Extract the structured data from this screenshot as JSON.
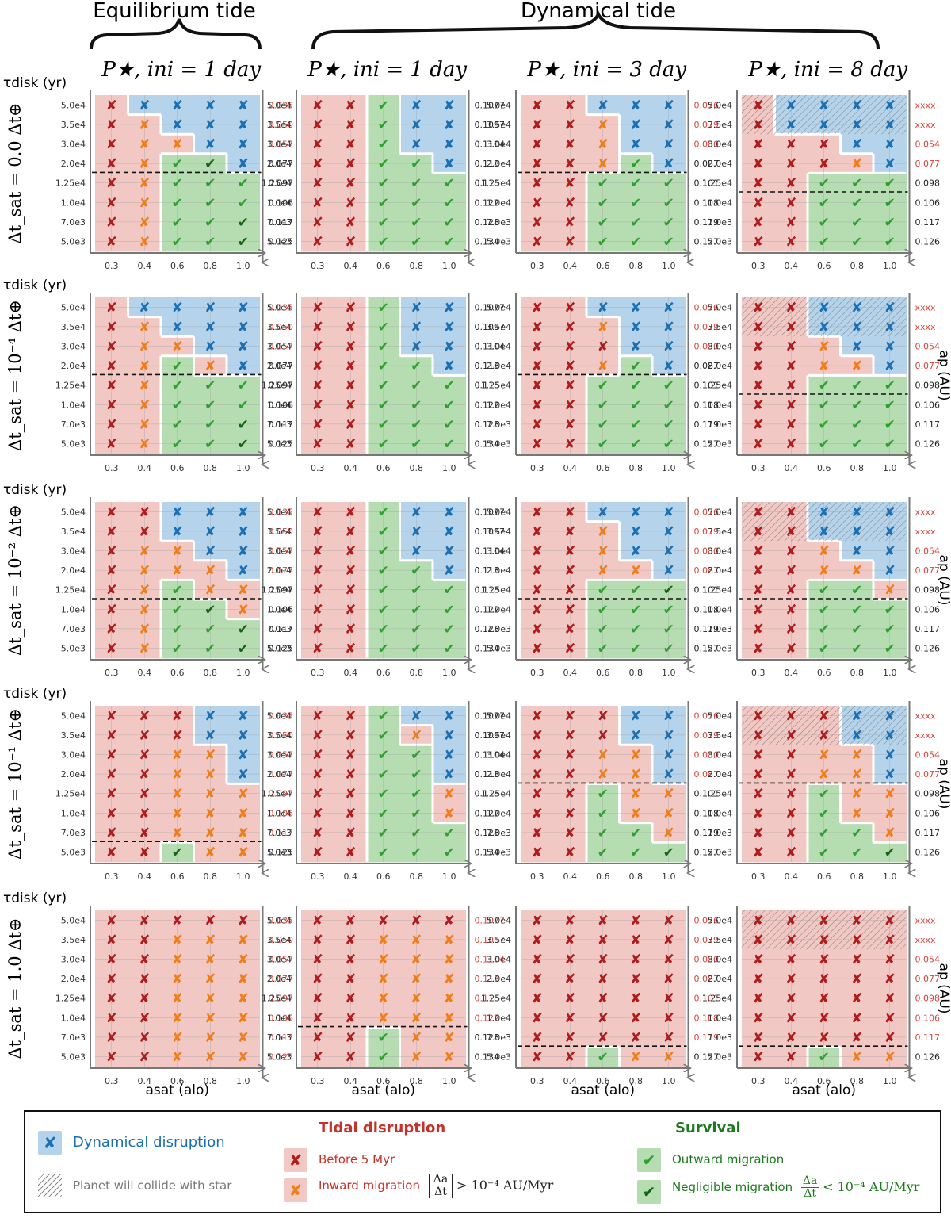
{
  "chart_data": {
    "type": "table",
    "column_group_headers": [
      "Equilibrium tide",
      "Dynamical tide"
    ],
    "panel_column_titles": [
      "P★, ini = 1 day",
      "P★, ini = 1 day",
      "P★, ini = 3 day",
      "P★, ini = 8 day"
    ],
    "row_titles": [
      "Δt_sat = 0.0 Δt⊕",
      "Δt_sat = 10⁻⁴ Δt⊕",
      "Δt_sat = 10⁻² Δt⊕",
      "Δt_sat = 10⁻¹ Δt⊕",
      "Δt_sat = 1.0 Δt⊕"
    ],
    "y_axis_label": "τdisk (yr)",
    "y_tick_labels": [
      "5.0e4",
      "3.5e4",
      "3.0e4",
      "2.0e4",
      "1.25e4",
      "1.0e4",
      "7.0e3",
      "5.0e3"
    ],
    "x_axis_label": "asat (alo)",
    "x_tick_labels": [
      "0.3",
      "0.4",
      "0.6",
      "0.8",
      "1.0"
    ],
    "right_axis_label": "ap (AU)",
    "ap_columns": [
      [
        "0.035",
        "0.050",
        "0.057",
        "0.077",
        "0.097",
        "0.106",
        "0.117",
        "0.125"
      ],
      [
        "0.1077",
        "0.1097",
        "0.1104",
        "0.113",
        "0.118",
        "0.122",
        "0.128",
        "0.134"
      ],
      [
        "0.076",
        "0.079",
        "0.080",
        "0.087",
        "0.101",
        "0.108",
        "0.119",
        "0.127"
      ],
      [
        "xxxx",
        "xxxx",
        "0.054",
        "0.077",
        "0.098",
        "0.106",
        "0.117",
        "0.126"
      ]
    ],
    "codes": {
      "B": "dynamical disruption",
      "R": "tidal disruption before 5 Myr",
      "O": "inward migration",
      "G": "outward migration",
      "D": "negligible migration"
    },
    "panels": [
      {
        "row": 0,
        "col": 0,
        "grid": [
          "RBBBB",
          "ROBBB",
          "ROOBB",
          "ROGDB",
          "ROGGG",
          "ROGGG",
          "ROGGD",
          "ROGGD"
        ],
        "red_ap_rows": [
          0,
          1,
          2
        ],
        "dashed_after_row": 3,
        "hatched_rows": []
      },
      {
        "row": 0,
        "col": 1,
        "grid": [
          "RRGBB",
          "RRGBB",
          "RRGBB",
          "RRGGB",
          "RRGGG",
          "RRGGG",
          "RRGGG",
          "RRGGG"
        ],
        "red_ap_rows": [],
        "dashed_after_row": null,
        "hatched_rows": []
      },
      {
        "row": 0,
        "col": 2,
        "grid": [
          "RRBBB",
          "RROBB",
          "RROBB",
          "RROGB",
          "RRGGG",
          "RRGGG",
          "RRGGG",
          "RRGGG"
        ],
        "red_ap_rows": [
          0,
          1,
          2
        ],
        "dashed_after_row": 3,
        "hatched_rows": []
      },
      {
        "row": 0,
        "col": 3,
        "grid": [
          "RBBBB",
          "RBBBB",
          "RRRBB",
          "RRROB",
          "RRGGG",
          "RRGGG",
          "RRGGG",
          "RRGGG"
        ],
        "red_ap_rows": [
          0,
          1,
          2,
          3
        ],
        "dashed_after_row": 4,
        "hatched_rows": [
          0,
          1
        ]
      },
      {
        "row": 1,
        "col": 0,
        "grid": [
          "RBBBB",
          "ROBBB",
          "ROOBB",
          "ROGOB",
          "ROGGG",
          "ROGGG",
          "ROGGD",
          "ROGGD"
        ],
        "red_ap_rows": [
          0,
          1,
          2
        ],
        "dashed_after_row": 3,
        "hatched_rows": []
      },
      {
        "row": 1,
        "col": 1,
        "grid": [
          "RRGBB",
          "RRGBB",
          "RRGBB",
          "RRGGB",
          "RRGGG",
          "RRGGG",
          "RRGGG",
          "RRGGG"
        ],
        "red_ap_rows": [],
        "dashed_after_row": null,
        "hatched_rows": []
      },
      {
        "row": 1,
        "col": 2,
        "grid": [
          "RRBBB",
          "RROBB",
          "RRRBB",
          "RROGB",
          "RRGGG",
          "RRGGG",
          "RRGGG",
          "RRGGG"
        ],
        "red_ap_rows": [
          0,
          1,
          2
        ],
        "dashed_after_row": 3,
        "hatched_rows": []
      },
      {
        "row": 1,
        "col": 3,
        "grid": [
          "RRBBB",
          "RRBBB",
          "RROBB",
          "RROOB",
          "RRGGG",
          "RRGGG",
          "RRGGG",
          "RRGGG"
        ],
        "red_ap_rows": [
          0,
          1,
          2,
          3
        ],
        "dashed_after_row": 4,
        "hatched_rows": [
          0,
          1
        ]
      },
      {
        "row": 2,
        "col": 0,
        "grid": [
          "RRBBB",
          "RRBBB",
          "ROOBB",
          "ROOOB",
          "ROGOO",
          "ROGDO",
          "ROGGD",
          "ROGGD"
        ],
        "red_ap_rows": [
          0,
          1,
          2,
          3
        ],
        "dashed_after_row": 4,
        "hatched_rows": []
      },
      {
        "row": 2,
        "col": 1,
        "grid": [
          "RRGBB",
          "RRGBB",
          "RRGBB",
          "RRGGB",
          "RRGGG",
          "RRGGG",
          "RRGGG",
          "RRGGG"
        ],
        "red_ap_rows": [],
        "dashed_after_row": null,
        "hatched_rows": []
      },
      {
        "row": 2,
        "col": 2,
        "grid": [
          "RRBBB",
          "RROBB",
          "RROBB",
          "RROOB",
          "RRGGD",
          "RRGGG",
          "RRGGG",
          "RRGGG"
        ],
        "red_ap_rows": [
          0,
          1,
          2,
          3
        ],
        "dashed_after_row": 4,
        "hatched_rows": []
      },
      {
        "row": 2,
        "col": 3,
        "grid": [
          "RRBBB",
          "RRBBB",
          "RROBB",
          "RROOB",
          "RRGGO",
          "RRGGG",
          "RRGGG",
          "RRGGG"
        ],
        "red_ap_rows": [
          0,
          1,
          2,
          3
        ],
        "dashed_after_row": 4,
        "hatched_rows": [
          0,
          1
        ]
      },
      {
        "row": 3,
        "col": 0,
        "grid": [
          "RRRBB",
          "RRRBB",
          "RROOB",
          "RROOB",
          "RROOO",
          "RROOO",
          "RROOO",
          "RRDOO"
        ],
        "red_ap_rows": [
          0,
          1,
          2,
          3,
          4,
          5,
          6
        ],
        "dashed_after_row": 6,
        "hatched_rows": []
      },
      {
        "row": 3,
        "col": 1,
        "grid": [
          "RRGBB",
          "RRGOB",
          "RRGGB",
          "RRGGB",
          "RRGGO",
          "RRGGO",
          "RRGGG",
          "RRGGG"
        ],
        "red_ap_rows": [],
        "dashed_after_row": null,
        "hatched_rows": []
      },
      {
        "row": 3,
        "col": 2,
        "grid": [
          "RRRBB",
          "RRRBB",
          "RROOB",
          "RROOB",
          "RRGOO",
          "RRGOO",
          "RRGGO",
          "RRGGD"
        ],
        "red_ap_rows": [
          0,
          1,
          2,
          3
        ],
        "dashed_after_row": 3,
        "hatched_rows": []
      },
      {
        "row": 3,
        "col": 3,
        "grid": [
          "RRRBB",
          "RRRBB",
          "RROOB",
          "RROOB",
          "RRGOO",
          "RRGOO",
          "RRGGO",
          "RRGGD"
        ],
        "red_ap_rows": [
          0,
          1,
          2,
          3
        ],
        "dashed_after_row": 3,
        "hatched_rows": [
          0,
          1
        ]
      },
      {
        "row": 4,
        "col": 0,
        "grid": [
          "RRRRR",
          "RROOO",
          "RROOO",
          "RROOO",
          "RROOO",
          "RROOO",
          "RROOO",
          "RROOO"
        ],
        "red_ap_rows": [
          0,
          1,
          2,
          3,
          4,
          5,
          6,
          7
        ],
        "dashed_after_row": null,
        "hatched_rows": []
      },
      {
        "row": 4,
        "col": 1,
        "grid": [
          "RRRRR",
          "RROOO",
          "RROOO",
          "RROOO",
          "RROOO",
          "RROOO",
          "RRGOO",
          "RRGOO"
        ],
        "red_ap_rows": [
          0,
          1,
          2,
          3,
          4,
          5
        ],
        "dashed_after_row": 5,
        "hatched_rows": []
      },
      {
        "row": 4,
        "col": 2,
        "grid": [
          "RRRRR",
          "RRRRR",
          "RRRRR",
          "RRRRR",
          "RRRRR",
          "RRRRR",
          "RRRRR",
          "RRGOO"
        ],
        "red_ap_rows": [
          0,
          1,
          2,
          3,
          4,
          5,
          6
        ],
        "dashed_after_row": 6,
        "hatched_rows": []
      },
      {
        "row": 4,
        "col": 3,
        "grid": [
          "RRRRR",
          "RRRRR",
          "RRRRR",
          "RRRRR",
          "RRRRR",
          "RRRRR",
          "RRRRR",
          "RRGOO"
        ],
        "red_ap_rows": [
          0,
          1,
          2,
          3,
          4,
          5,
          6
        ],
        "dashed_after_row": 6,
        "hatched_rows": [
          0,
          1
        ]
      }
    ]
  },
  "legend": {
    "dynamical": "Dynamical disruption",
    "collide": "Planet will collide with star",
    "tidal_title": "Tidal disruption",
    "before": "Before 5 Myr",
    "inward": "Inward migration",
    "inward_cond": "> 10⁻⁴ AU/Myr",
    "survival_title": "Survival",
    "outward": "Outward migration",
    "negligible": "Negligible migration",
    "negligible_cond": "< 10⁻⁴ AU/Myr",
    "frac_top": "Δa",
    "frac_bottom": "Δt"
  },
  "colors": {
    "blue_bg": "#b5d3ea",
    "red_bg": "#f2c8c4",
    "green_bg": "#b6dcb2",
    "blue_mark": "#1b6fb3",
    "red_mark": "#b01b1b",
    "orange_mark": "#f07d1a",
    "green_mark": "#2ca02c",
    "dkgreen_mark": "#146414",
    "ap_red": "#d9453b",
    "blue_text": "#1b6fb3",
    "red_text": "#c8302a",
    "green_text": "#1f7a1f"
  }
}
